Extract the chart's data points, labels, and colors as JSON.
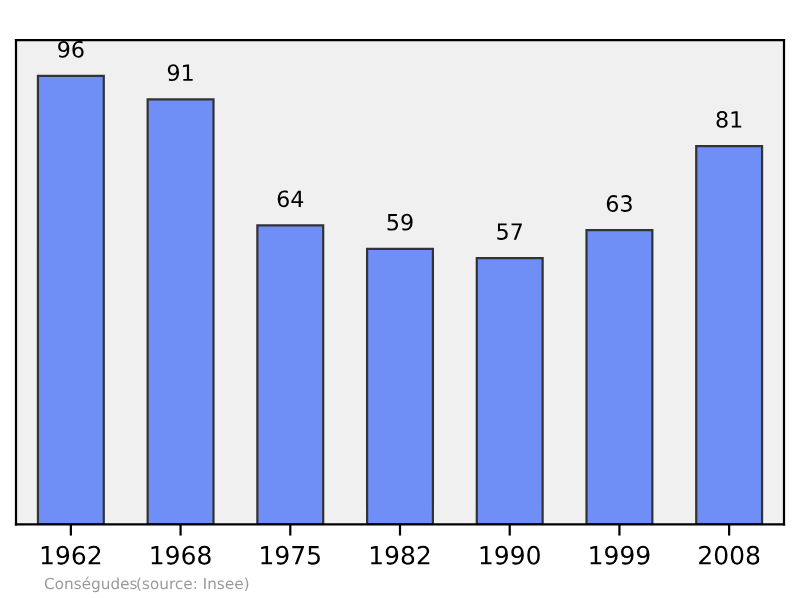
{
  "chart_data": {
    "type": "bar",
    "categories": [
      "1962",
      "1968",
      "1975",
      "1982",
      "1990",
      "1999",
      "2008"
    ],
    "values": [
      96,
      91,
      64,
      59,
      57,
      63,
      81
    ],
    "color": "#6f8ff7",
    "data_labels": true,
    "grid": false,
    "legend": false,
    "tick_labels": "x",
    "annotations": [
      "Conségudes",
      "(source: Insee)"
    ]
  }
}
